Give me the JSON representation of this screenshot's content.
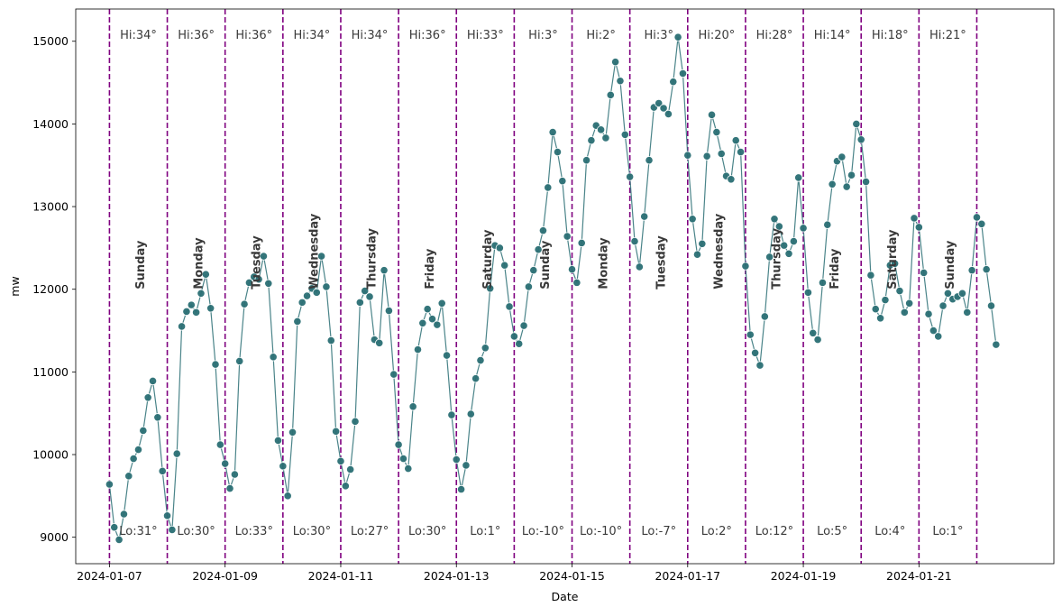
{
  "chart_data": {
    "type": "line",
    "xlabel": "Date",
    "ylabel": "mw",
    "x_tick_labels": [
      "2024-01-07",
      "2024-01-09",
      "2024-01-11",
      "2024-01-13",
      "2024-01-15",
      "2024-01-17",
      "2024-01-19",
      "2024-01-21"
    ],
    "y_tick_labels": [
      "9000",
      "10000",
      "11000",
      "12000",
      "13000",
      "14000",
      "15000"
    ],
    "y_ticks": [
      9000,
      10000,
      11000,
      12000,
      13000,
      14000,
      15000
    ],
    "xlim": [
      "2024-01-06 10:00",
      "2024-01-23 08:00"
    ],
    "ylim": [
      8680,
      15390
    ],
    "grid": false,
    "series_color": "#2a6f74",
    "divider_color": "#800080",
    "label_color": "#3a3a3a",
    "day_boundaries": [
      "2024-01-07",
      "2024-01-08",
      "2024-01-09",
      "2024-01-10",
      "2024-01-11",
      "2024-01-12",
      "2024-01-13",
      "2024-01-14",
      "2024-01-15",
      "2024-01-16",
      "2024-01-17",
      "2024-01-18",
      "2024-01-19",
      "2024-01-20",
      "2024-01-21",
      "2024-01-22"
    ],
    "days": [
      {
        "date": "2024-01-07",
        "weekday": "Sunday",
        "hi": "Hi:34°",
        "lo": "Lo:31°"
      },
      {
        "date": "2024-01-08",
        "weekday": "Monday",
        "hi": "Hi:36°",
        "lo": "Lo:30°"
      },
      {
        "date": "2024-01-09",
        "weekday": "Tuesday",
        "hi": "Hi:36°",
        "lo": "Lo:33°"
      },
      {
        "date": "2024-01-10",
        "weekday": "Wednesday",
        "hi": "Hi:34°",
        "lo": "Lo:30°"
      },
      {
        "date": "2024-01-11",
        "weekday": "Thursday",
        "hi": "Hi:34°",
        "lo": "Lo:27°"
      },
      {
        "date": "2024-01-12",
        "weekday": "Friday",
        "hi": "Hi:36°",
        "lo": "Lo:30°"
      },
      {
        "date": "2024-01-13",
        "weekday": "Saturday",
        "hi": "Hi:33°",
        "lo": "Lo:1°"
      },
      {
        "date": "2024-01-14",
        "weekday": "Sunday",
        "hi": "Hi:3°",
        "lo": "Lo:-10°"
      },
      {
        "date": "2024-01-15",
        "weekday": "Monday",
        "hi": "Hi:2°",
        "lo": "Lo:-10°"
      },
      {
        "date": "2024-01-16",
        "weekday": "Tuesday",
        "hi": "Hi:3°",
        "lo": "Lo:-7°"
      },
      {
        "date": "2024-01-17",
        "weekday": "Wednesday",
        "hi": "Hi:20°",
        "lo": "Lo:2°"
      },
      {
        "date": "2024-01-18",
        "weekday": "Thursday",
        "hi": "Hi:28°",
        "lo": "Lo:12°"
      },
      {
        "date": "2024-01-19",
        "weekday": "Friday",
        "hi": "Hi:14°",
        "lo": "Lo:5°"
      },
      {
        "date": "2024-01-20",
        "weekday": "Saturday",
        "hi": "Hi:18°",
        "lo": "Lo:4°"
      },
      {
        "date": "2024-01-21",
        "weekday": "Sunday",
        "hi": "Hi:21°",
        "lo": "Lo:1°"
      }
    ],
    "start": "2024-01-07 00:00",
    "interval_hours": 2,
    "series": [
      {
        "values": [
          9640,
          9120,
          8970,
          9280,
          9740,
          9950,
          10060,
          10290,
          10690,
          10890,
          10450,
          9800,
          9260,
          9090,
          10010,
          11550,
          11730,
          11810,
          11720,
          11950,
          12180,
          11770,
          11090,
          10120,
          9890,
          9590,
          9760,
          11130,
          11820,
          12080,
          12150,
          12120,
          12400,
          12070,
          11180,
          10170,
          9860,
          9500,
          10270,
          11610,
          11840,
          11920,
          12010,
          11960,
          12400,
          12030,
          11380,
          10280,
          9920,
          9620,
          9820,
          10400,
          11840,
          11980,
          11910,
          11390,
          11350,
          12230,
          11740,
          10970,
          10120,
          9950,
          9830,
          10580,
          11270,
          11590,
          11760,
          11640,
          11570,
          11830,
          11200,
          10480,
          9940,
          9580,
          9870,
          10490,
          10920,
          11140,
          11290,
          12010,
          12530,
          12500,
          12290,
          11790,
          11430,
          11340,
          11560,
          12030,
          12230,
          12480,
          12710,
          13230,
          13900,
          13660,
          13310,
          12640,
          12240,
          12080,
          12560,
          13560,
          13800,
          13980,
          13930,
          13830,
          14350,
          14750,
          14520,
          13870,
          13360,
          12580,
          12270,
          12880,
          13560,
          14200,
          14250,
          14190,
          14120,
          14510,
          15050,
          14610,
          13620,
          12850,
          12420,
          12550,
          13610,
          14110,
          13900,
          13640,
          13370,
          13330,
          13800,
          13660,
          12280,
          11450,
          11230,
          11080,
          11670,
          12390,
          12850,
          12760,
          12530,
          12430,
          12580,
          13350,
          12740,
          11960,
          11470,
          11390,
          12080,
          12780,
          13270,
          13550,
          13600,
          13240,
          13380,
          14000,
          13810,
          13300,
          12170,
          11760,
          11650,
          11870,
          12290,
          12310,
          11980,
          11720,
          11830,
          12860,
          12750,
          12200,
          11700,
          11500,
          11430,
          11800,
          11950,
          11880,
          11910,
          11950,
          11720,
          12230,
          12870,
          12790,
          12240,
          11800,
          11330
        ]
      }
    ]
  }
}
